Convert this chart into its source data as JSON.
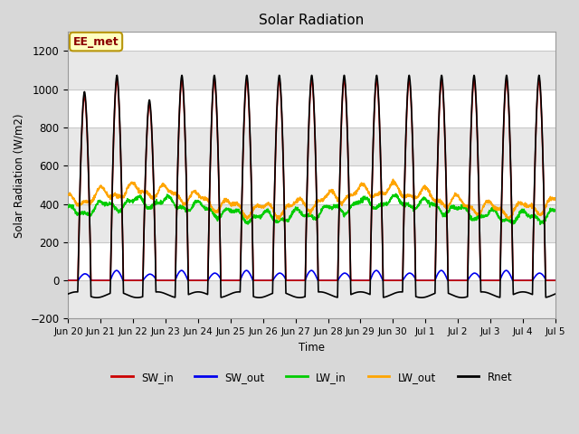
{
  "title": "Solar Radiation",
  "ylabel": "Solar Radiation (W/m2)",
  "xlabel": "Time",
  "ylim": [
    -200,
    1300
  ],
  "yticks": [
    -200,
    0,
    200,
    400,
    600,
    800,
    1000,
    1200
  ],
  "annotation_text": "EE_met",
  "annotation_color": "#8B0000",
  "annotation_bg": "#FFFFC0",
  "annotation_border": "#B8960C",
  "tick_labels": [
    "Jun 20",
    "Jun 21",
    "Jun 22",
    "Jun 23",
    "Jun 24",
    "Jun 25",
    "Jun 26",
    "Jun 27",
    "Jun 28",
    "Jun 29",
    "Jun 30",
    "Jul 1",
    "Jul 2",
    "Jul 3",
    "Jul 4",
    "Jul 5"
  ],
  "n_days": 15,
  "pts_per_day": 144,
  "colors": {
    "SW_in": "#CC0000",
    "SW_out": "#0000EE",
    "LW_in": "#00CC00",
    "LW_out": "#FFA500",
    "Rnet": "#000000"
  },
  "bg_color": "#D8D8D8",
  "plot_bg": "#FFFFFF",
  "grid_color": "#C8C8C8",
  "linewidth": 1.2
}
